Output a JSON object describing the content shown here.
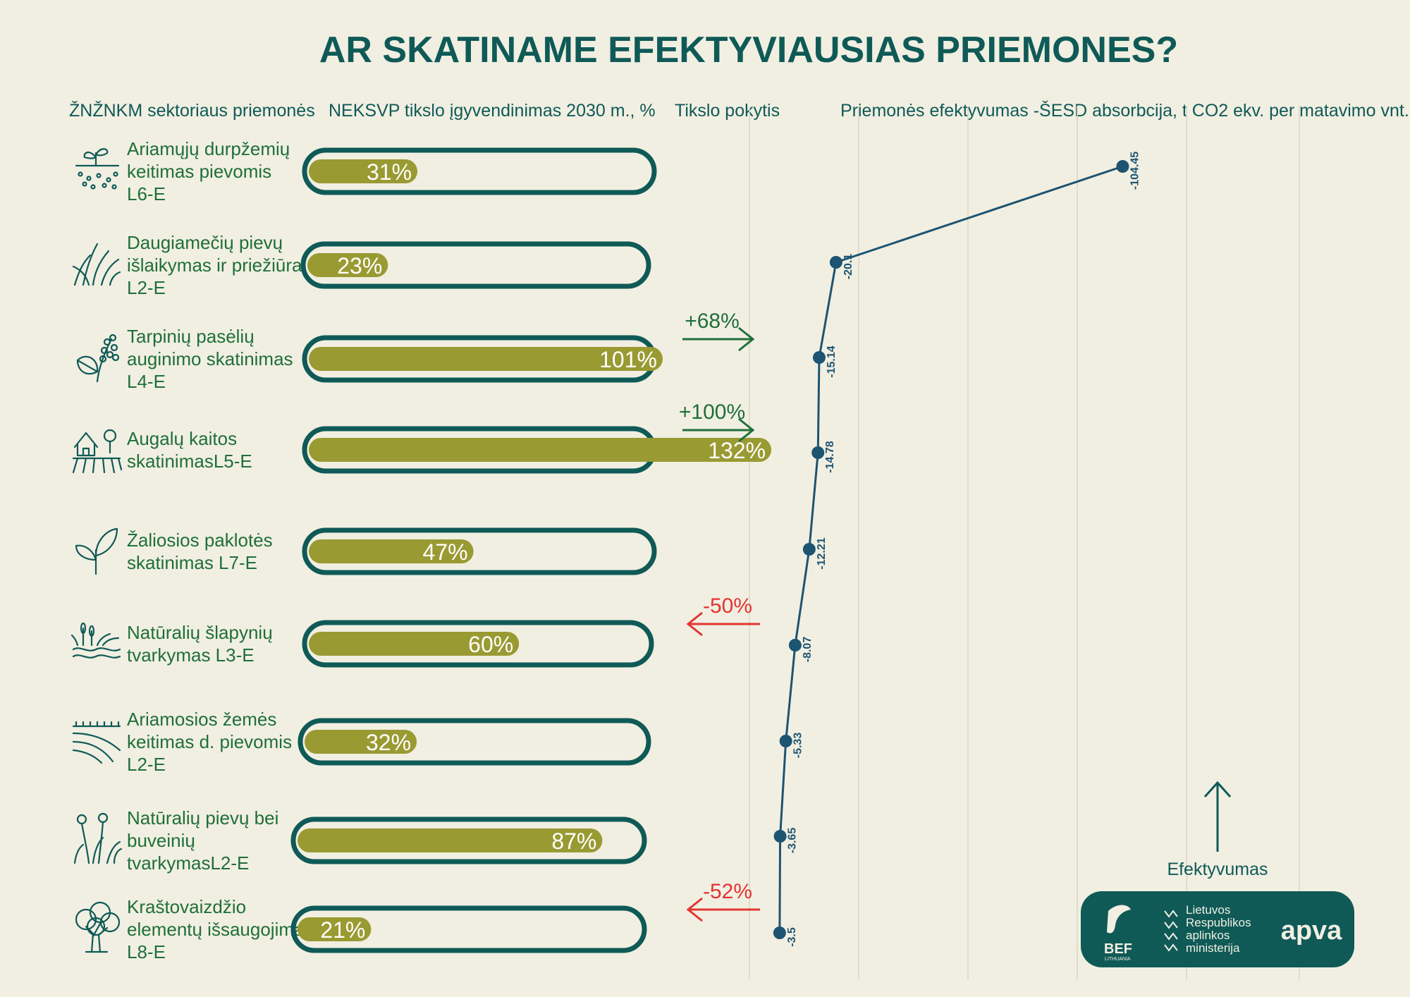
{
  "title": "AR SKATINAME EFEKTYVIAUSIAS PRIEMONES?",
  "headers": {
    "measures": "ŽNŽNKM  sektoriaus priemonės",
    "goal": "NEKSVP tikslo įgyvendinimas 2030 m., %",
    "change": "Tikslo pokytis",
    "efficiency": "Priemonės efektyvumas -ŠESD absorbcija, t CO2 ekv. per matavimo vnt."
  },
  "measures": [
    {
      "lines": [
        "Ariamųjų durpžemių",
        "keitimas pievomis",
        "L6-E"
      ],
      "icon": "soil-sprout-icon"
    },
    {
      "lines": [
        "Daugiamečių pievų",
        "išlaikymas ir priežiūra",
        "L2-E"
      ],
      "icon": "grass-icon"
    },
    {
      "lines": [
        "Tarpinių pasėlių",
        "auginimo skatinimas",
        "L4-E"
      ],
      "icon": "plant-leaf-icon"
    },
    {
      "lines": [
        "Augalų kaitos",
        "skatinimasL5-E"
      ],
      "icon": "farm-field-icon"
    },
    {
      "lines": [
        "Žaliosios paklotės",
        "skatinimas L7-E"
      ],
      "icon": "seedling-icon"
    },
    {
      "lines": [
        "Natūralių šlapynių",
        "tvarkymas L3-E"
      ],
      "icon": "wetland-icon"
    },
    {
      "lines": [
        "Ariamosios žemės",
        "keitimas d. pievomis",
        "L2-E"
      ],
      "icon": "plowed-field-icon"
    },
    {
      "lines": [
        "Natūralių pievų bei",
        "buveinių",
        "tvarkymasL2-E"
      ],
      "icon": "meadow-flowers-icon"
    },
    {
      "lines": [
        "Kraštovaizdžio",
        "elementų išsaugojimas",
        "L8-E"
      ],
      "icon": "tree-icon"
    }
  ],
  "chart_data": [
    {
      "type": "bar",
      "categories": [
        "L6-E",
        "L2-E",
        "L4-E",
        "L5-E",
        "L7-E",
        "L3-E",
        "L2-E",
        "L2-E",
        "L8-E"
      ],
      "values": [
        31,
        23,
        101,
        132,
        47,
        60,
        32,
        87,
        21
      ],
      "value_labels": [
        "31%",
        "23%",
        "101%",
        "132%",
        "47%",
        "60%",
        "32%",
        "87%",
        "21%"
      ],
      "unit": "%"
    },
    {
      "type": "line",
      "categories": [
        "L6-E",
        "L2-E",
        "L4-E",
        "L5-E",
        "L7-E",
        "L3-E",
        "L2-E",
        "L2-E",
        "L8-E"
      ],
      "values": [
        -104.45,
        -20.1,
        -15.14,
        -14.78,
        -12.21,
        -8.07,
        -5.33,
        -3.65,
        -3.5
      ],
      "labels": [
        "-104.45",
        "-20.1",
        "-15.14",
        "-14.78",
        "-12.21",
        "-8.07",
        "-5.33",
        "-3.65",
        "-3.5"
      ],
      "grid": true
    }
  ],
  "changes": [
    {
      "label": "+68%",
      "direction": "right",
      "row": 2,
      "color": "#1f6f3a"
    },
    {
      "label": "+100%",
      "direction": "right",
      "row": 3,
      "color": "#1f6f3a"
    },
    {
      "label": "-50%",
      "direction": "left",
      "row": 5,
      "color": "#e4342f"
    },
    {
      "label": "-52%",
      "direction": "left",
      "row": 8,
      "color": "#e4342f"
    }
  ],
  "efficiency_label": "Efektyvumas",
  "logos": {
    "bef": "BEF",
    "bef_sub": "LITHUANIA",
    "ministry_lines": [
      "Lietuvos",
      "Respublikos",
      "aplinkos",
      "ministerija"
    ],
    "apva": "apva"
  },
  "colors": {
    "background": "#f1efe2",
    "teal": "#0f5a57",
    "olive": "#999a32",
    "navy": "#1d5472",
    "green_text": "#1f6f3a",
    "red": "#e4342f"
  }
}
